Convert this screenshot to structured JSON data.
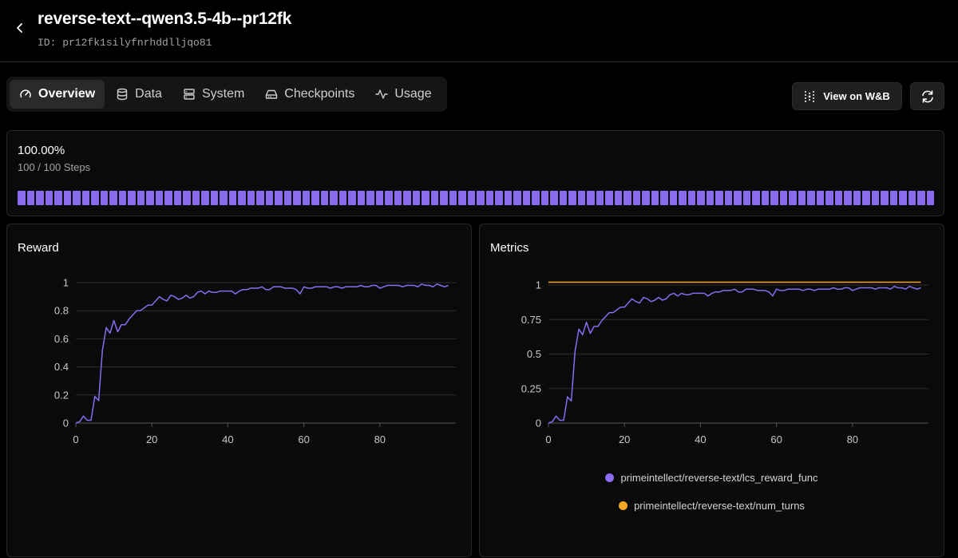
{
  "header": {
    "title": "reverse-text--qwen3.5-4b--pr12fk",
    "run_id": "ID: pr12fk1silyfnrhddlljqo81"
  },
  "tabs": [
    {
      "label": "Overview",
      "icon": "gauge-icon",
      "active": true
    },
    {
      "label": "Data",
      "icon": "database-icon",
      "active": false
    },
    {
      "label": "System",
      "icon": "server-icon",
      "active": false
    },
    {
      "label": "Checkpoints",
      "icon": "hard-drive-icon",
      "active": false
    },
    {
      "label": "Usage",
      "icon": "activity-icon",
      "active": false
    }
  ],
  "actions": {
    "wandb_label": "View on W&B",
    "refresh_icon": "refresh-icon"
  },
  "progress": {
    "percent_label": "100.00%",
    "steps_label": "100 / 100 Steps",
    "completed": 100,
    "total": 100,
    "color": "#8b6cf0"
  },
  "reward_card": {
    "title": "Reward"
  },
  "metrics_card": {
    "title": "Metrics"
  },
  "chart_data": [
    {
      "type": "line",
      "title": "Reward",
      "xlabel": "",
      "ylabel": "",
      "xlim": [
        0,
        100
      ],
      "ylim": [
        0,
        1
      ],
      "x_ticks": [
        0,
        20,
        40,
        60,
        80
      ],
      "y_ticks": [
        0,
        0.2,
        0.4,
        0.6,
        0.8,
        1
      ],
      "y_tick_labels": [
        "0",
        "0.2",
        "0.4",
        "0.6",
        "0.8",
        "1"
      ],
      "grid": "horizontal",
      "series": [
        {
          "color": "#8b6cf0",
          "x": [
            0,
            1,
            2,
            3,
            4,
            5,
            6,
            7,
            8,
            9,
            10,
            11,
            12,
            13,
            14,
            15,
            16,
            17,
            18,
            19,
            20,
            21,
            22,
            23,
            24,
            25,
            26,
            27,
            28,
            29,
            30,
            31,
            32,
            33,
            34,
            35,
            36,
            37,
            38,
            39,
            40,
            41,
            42,
            43,
            44,
            45,
            46,
            47,
            48,
            49,
            50,
            51,
            52,
            53,
            54,
            55,
            56,
            57,
            58,
            59,
            60,
            61,
            62,
            63,
            64,
            65,
            66,
            67,
            68,
            69,
            70,
            71,
            72,
            73,
            74,
            75,
            76,
            77,
            78,
            79,
            80,
            81,
            82,
            83,
            84,
            85,
            86,
            87,
            88,
            89,
            90,
            91,
            92,
            93,
            94,
            95,
            96,
            97,
            98
          ],
          "values": [
            0.0,
            0.01,
            0.05,
            0.02,
            0.02,
            0.19,
            0.16,
            0.52,
            0.68,
            0.64,
            0.73,
            0.65,
            0.7,
            0.7,
            0.74,
            0.77,
            0.8,
            0.8,
            0.82,
            0.84,
            0.84,
            0.87,
            0.9,
            0.88,
            0.87,
            0.91,
            0.9,
            0.88,
            0.89,
            0.91,
            0.89,
            0.9,
            0.93,
            0.94,
            0.92,
            0.94,
            0.93,
            0.93,
            0.94,
            0.94,
            0.94,
            0.94,
            0.92,
            0.94,
            0.95,
            0.95,
            0.96,
            0.96,
            0.96,
            0.97,
            0.95,
            0.95,
            0.97,
            0.97,
            0.97,
            0.96,
            0.96,
            0.96,
            0.95,
            0.92,
            0.97,
            0.96,
            0.96,
            0.97,
            0.97,
            0.97,
            0.97,
            0.96,
            0.97,
            0.97,
            0.96,
            0.97,
            0.97,
            0.97,
            0.97,
            0.98,
            0.97,
            0.97,
            0.98,
            0.98,
            0.96,
            0.97,
            0.98,
            0.98,
            0.98,
            0.98,
            0.97,
            0.98,
            0.98,
            0.98,
            0.97,
            0.99,
            0.98,
            0.98,
            0.97,
            0.99,
            0.98,
            0.97,
            0.98
          ]
        }
      ]
    },
    {
      "type": "line",
      "title": "Metrics",
      "xlabel": "",
      "ylabel": "",
      "xlim": [
        0,
        100
      ],
      "ylim": [
        0,
        1
      ],
      "x_ticks": [
        0,
        20,
        40,
        60,
        80
      ],
      "y_ticks": [
        0,
        0.25,
        0.5,
        0.75,
        1
      ],
      "y_tick_labels": [
        "0",
        "0.25",
        "0.5",
        "0.75",
        "1"
      ],
      "grid": "horizontal",
      "legend": "bottom-center",
      "series": [
        {
          "name": "primeintellect/reverse-text/lcs_reward_func",
          "color": "#8b6cf0",
          "x": [
            0,
            1,
            2,
            3,
            4,
            5,
            6,
            7,
            8,
            9,
            10,
            11,
            12,
            13,
            14,
            15,
            16,
            17,
            18,
            19,
            20,
            21,
            22,
            23,
            24,
            25,
            26,
            27,
            28,
            29,
            30,
            31,
            32,
            33,
            34,
            35,
            36,
            37,
            38,
            39,
            40,
            41,
            42,
            43,
            44,
            45,
            46,
            47,
            48,
            49,
            50,
            51,
            52,
            53,
            54,
            55,
            56,
            57,
            58,
            59,
            60,
            61,
            62,
            63,
            64,
            65,
            66,
            67,
            68,
            69,
            70,
            71,
            72,
            73,
            74,
            75,
            76,
            77,
            78,
            79,
            80,
            81,
            82,
            83,
            84,
            85,
            86,
            87,
            88,
            89,
            90,
            91,
            92,
            93,
            94,
            95,
            96,
            97,
            98
          ],
          "values": [
            0.0,
            0.01,
            0.05,
            0.02,
            0.02,
            0.19,
            0.16,
            0.52,
            0.68,
            0.64,
            0.73,
            0.65,
            0.7,
            0.7,
            0.74,
            0.77,
            0.8,
            0.8,
            0.82,
            0.84,
            0.84,
            0.87,
            0.9,
            0.88,
            0.87,
            0.91,
            0.9,
            0.88,
            0.89,
            0.91,
            0.89,
            0.9,
            0.93,
            0.94,
            0.92,
            0.94,
            0.93,
            0.93,
            0.94,
            0.94,
            0.94,
            0.94,
            0.92,
            0.94,
            0.95,
            0.95,
            0.96,
            0.96,
            0.96,
            0.97,
            0.95,
            0.95,
            0.97,
            0.97,
            0.97,
            0.96,
            0.96,
            0.96,
            0.95,
            0.92,
            0.97,
            0.96,
            0.96,
            0.97,
            0.97,
            0.97,
            0.97,
            0.96,
            0.97,
            0.97,
            0.96,
            0.97,
            0.97,
            0.97,
            0.97,
            0.98,
            0.97,
            0.97,
            0.98,
            0.98,
            0.96,
            0.97,
            0.98,
            0.98,
            0.98,
            0.98,
            0.97,
            0.98,
            0.98,
            0.98,
            0.97,
            0.99,
            0.98,
            0.98,
            0.97,
            0.99,
            0.98,
            0.97,
            0.98
          ]
        },
        {
          "name": "primeintellect/reverse-text/num_turns",
          "color": "#f5a623",
          "x": [
            0,
            98
          ],
          "values": [
            1.02,
            1.02
          ]
        }
      ]
    }
  ]
}
